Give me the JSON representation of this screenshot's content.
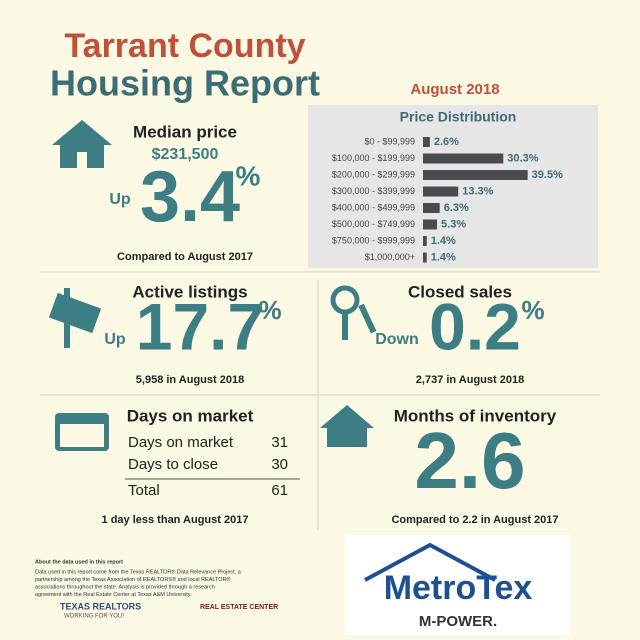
{
  "header": {
    "title_line1": "Tarrant County",
    "title_line2": "Housing Report",
    "period": "August 2018"
  },
  "price_distribution": {
    "type": "bar",
    "title": "Price Distribution",
    "categories": [
      "$0 - $99,999",
      "$100,000 - $199,999",
      "$200,000 - $299,999",
      "$300,000 - $399,999",
      "$400,000 - $499,999",
      "$500,000 - $749,999",
      "$750,000 - $999,999",
      "$1,000,000+"
    ],
    "values": [
      2.6,
      30.3,
      39.5,
      13.3,
      6.3,
      5.3,
      1.4,
      1.4
    ],
    "value_labels": [
      "2.6%",
      "30.3%",
      "39.5%",
      "13.3%",
      "6.3%",
      "5.3%",
      "1.4%",
      "1.4%"
    ],
    "color": "#4a4a4f",
    "xlim": [
      0,
      40
    ]
  },
  "median_price": {
    "heading": "Median price",
    "price": "$231,500",
    "direction": "Up",
    "change": "3.4",
    "unit": "%",
    "note": "Compared to August 2017"
  },
  "active_listings": {
    "heading": "Active listings",
    "direction": "Up",
    "change": "17.7",
    "unit": "%",
    "note": "5,958 in August 2018"
  },
  "closed_sales": {
    "heading": "Closed sales",
    "direction": "Down",
    "change": "0.2",
    "unit": "%",
    "note": "2,737 in August 2018"
  },
  "days_on_market": {
    "heading": "Days on market",
    "rows": [
      [
        "Days on market",
        "31"
      ],
      [
        "Days to close",
        "30"
      ],
      [
        "Total",
        "61"
      ]
    ],
    "note": "1 day less than August 2017"
  },
  "months_of_inventory": {
    "heading": "Months of inventory",
    "value": "2.6",
    "note": "Compared to 2.2 in August 2017"
  },
  "footer": {
    "about_title": "About the data used in this report",
    "about_lines": [
      "Data used in this report come from the Texas REALTOR® Data Relevance Project, a",
      "partnership among the Texas Association of REALTORS® and local REALTOR®",
      "associations throughout the state. Analysis is provided through a research",
      "agreement with the Real Estate Center at Texas A&M University."
    ],
    "logo1": "TEXAS REALTORS",
    "logo1_tag": "WORKING FOR YOU!",
    "logo2": "REAL ESTATE CENTER",
    "logo3": "MetroTex",
    "logo3_tag": "M-POWER."
  }
}
